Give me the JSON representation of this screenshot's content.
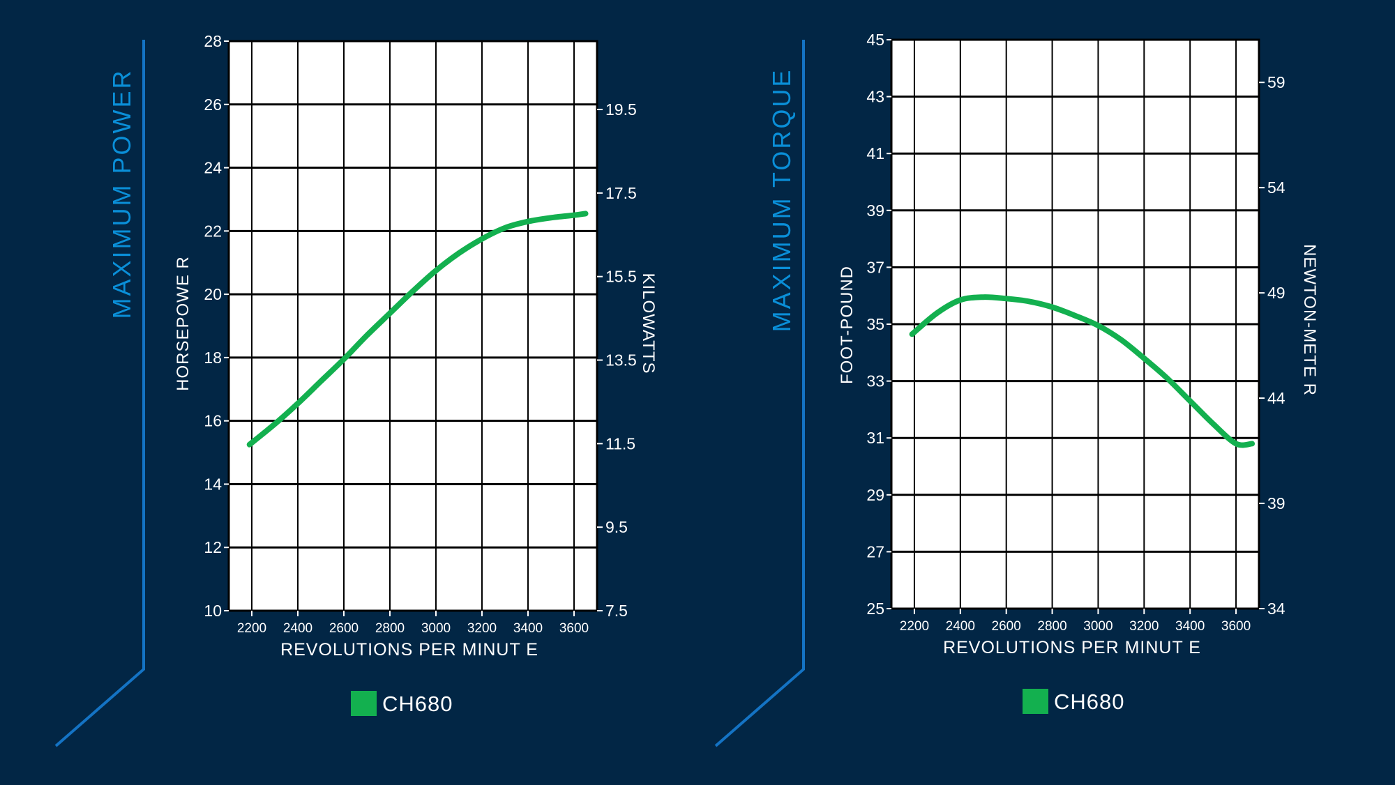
{
  "colors": {
    "background": "#022645",
    "plot_background": "#ffffff",
    "grid": "#000000",
    "accent": "#0a8fd8",
    "series": "#13b04f",
    "text": "#ffffff"
  },
  "chart_data": [
    {
      "type": "line",
      "title": "MAXIMUM POWER",
      "xlabel": "REVOLUTIONS PER MINUT E",
      "ylabel": "HORSEPOWE R",
      "y2label": "KILOWATTS",
      "xlim": [
        2100,
        3700
      ],
      "ylim": [
        10,
        28
      ],
      "x_ticks": [
        "2200",
        "2400",
        "2600",
        "2800",
        "3000",
        "3200",
        "3400",
        "3600"
      ],
      "y_ticks": [
        "10",
        "12",
        "14",
        "16",
        "18",
        "20",
        "22",
        "24",
        "26",
        "28"
      ],
      "y2_ticks": [
        {
          "label": "7.5",
          "hp": 10
        },
        {
          "label": "9.5",
          "hp": 12.64
        },
        {
          "label": "11.5",
          "hp": 15.28
        },
        {
          "label": "13.5",
          "hp": 17.92
        },
        {
          "label": "15.5",
          "hp": 20.56
        },
        {
          "label": "17.5",
          "hp": 23.2
        },
        {
          "label": "19.5",
          "hp": 25.84
        }
      ],
      "legend": "bottom-center",
      "grid": true,
      "series": [
        {
          "name": "CH680",
          "x": [
            2190,
            2300,
            2400,
            2500,
            2600,
            2700,
            2800,
            2900,
            3000,
            3100,
            3200,
            3300,
            3400,
            3500,
            3600,
            3650
          ],
          "y": [
            15.25,
            15.9,
            16.55,
            17.25,
            17.95,
            18.7,
            19.4,
            20.1,
            20.75,
            21.3,
            21.75,
            22.1,
            22.3,
            22.42,
            22.5,
            22.55
          ]
        }
      ]
    },
    {
      "type": "line",
      "title": "MAXIMUM TORQUE",
      "xlabel": "REVOLUTIONS PER MINUT E",
      "ylabel": "FOOT-POUND",
      "y2label": "NEWTON-METE R",
      "xlim": [
        2100,
        3700
      ],
      "ylim": [
        25,
        45
      ],
      "x_ticks": [
        "2200",
        "2400",
        "2600",
        "2800",
        "3000",
        "3200",
        "3400",
        "3600"
      ],
      "y_ticks": [
        "25",
        "27",
        "29",
        "31",
        "33",
        "35",
        "37",
        "39",
        "41",
        "43",
        "45"
      ],
      "y2_ticks": [
        {
          "label": "34",
          "ftlb": 25
        },
        {
          "label": "39",
          "ftlb": 28.7
        },
        {
          "label": "44",
          "ftlb": 32.4
        },
        {
          "label": "49",
          "ftlb": 36.1
        },
        {
          "label": "54",
          "ftlb": 39.8
        },
        {
          "label": "59",
          "ftlb": 43.5
        }
      ],
      "legend": "bottom-center",
      "grid": true,
      "series": [
        {
          "name": "CH680",
          "x": [
            2190,
            2300,
            2400,
            2500,
            2600,
            2700,
            2800,
            2900,
            3000,
            3100,
            3200,
            3300,
            3400,
            3500,
            3600,
            3670
          ],
          "y": [
            34.65,
            35.4,
            35.85,
            35.95,
            35.9,
            35.8,
            35.6,
            35.3,
            34.95,
            34.45,
            33.8,
            33.1,
            32.3,
            31.5,
            30.8,
            30.8
          ]
        }
      ]
    }
  ]
}
